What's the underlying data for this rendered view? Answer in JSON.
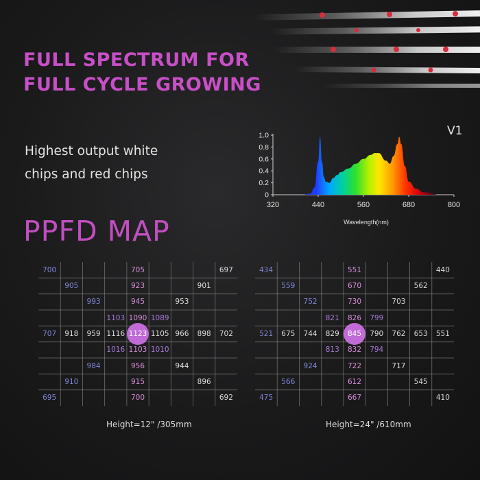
{
  "headline": {
    "line1": "FULL SPECTRUM FOR",
    "line2": "FULL CYCLE GROWING"
  },
  "subtext": {
    "line1": "Highest output white",
    "line2": "chips and red chips"
  },
  "ppfd_title": "PPFD MAP",
  "spectrum": {
    "version": "V1",
    "xlabel": "Wavelength(nm)",
    "x_ticks": [
      "320",
      "440",
      "560",
      "680",
      "800"
    ],
    "y_ticks": [
      "0",
      "0.2",
      "0.4",
      "0.6",
      "0.8",
      "1.0"
    ]
  },
  "chart_data": {
    "type": "area",
    "title": "V1",
    "xlabel": "Wavelength(nm)",
    "ylabel": "",
    "xlim": [
      320,
      800
    ],
    "ylim": [
      0,
      1.0
    ],
    "x": [
      400,
      420,
      430,
      440,
      445,
      450,
      455,
      460,
      470,
      480,
      490,
      500,
      520,
      540,
      560,
      580,
      590,
      600,
      620,
      630,
      640,
      650,
      655,
      660,
      670,
      680,
      700,
      720,
      760
    ],
    "series": [
      {
        "values": [
          0,
          0.02,
          0.12,
          0.55,
          0.97,
          0.55,
          0.3,
          0.22,
          0.2,
          0.28,
          0.33,
          0.38,
          0.44,
          0.52,
          0.6,
          0.67,
          0.7,
          0.7,
          0.57,
          0.52,
          0.65,
          0.85,
          0.97,
          0.85,
          0.48,
          0.22,
          0.1,
          0.04,
          0
        ]
      }
    ]
  },
  "maps": [
    {
      "height_label": "Height=12\" /305mm",
      "center_value": "1123",
      "cells": [
        {
          "v": "700",
          "r": 0,
          "c": 0,
          "t": "blue"
        },
        {
          "v": "705",
          "r": 0,
          "c": 4,
          "t": "pink"
        },
        {
          "v": "697",
          "r": 0,
          "c": 8,
          "t": "white"
        },
        {
          "v": "905",
          "r": 1,
          "c": 1,
          "t": "blue"
        },
        {
          "v": "923",
          "r": 1,
          "c": 4,
          "t": "pink"
        },
        {
          "v": "901",
          "r": 1,
          "c": 7,
          "t": "white"
        },
        {
          "v": "993",
          "r": 2,
          "c": 2,
          "t": "blue"
        },
        {
          "v": "945",
          "r": 2,
          "c": 4,
          "t": "pink"
        },
        {
          "v": "953",
          "r": 2,
          "c": 6,
          "t": "white"
        },
        {
          "v": "1103",
          "r": 3,
          "c": 3,
          "t": "purple"
        },
        {
          "v": "1090",
          "r": 3,
          "c": 4,
          "t": "pink"
        },
        {
          "v": "1089",
          "r": 3,
          "c": 5,
          "t": "purple"
        },
        {
          "v": "707",
          "r": 4,
          "c": 0,
          "t": "blue"
        },
        {
          "v": "918",
          "r": 4,
          "c": 1,
          "t": "white"
        },
        {
          "v": "959",
          "r": 4,
          "c": 2,
          "t": "white"
        },
        {
          "v": "1116",
          "r": 4,
          "c": 3,
          "t": "white"
        },
        {
          "v": "1105",
          "r": 4,
          "c": 5,
          "t": "white"
        },
        {
          "v": "966",
          "r": 4,
          "c": 6,
          "t": "white"
        },
        {
          "v": "898",
          "r": 4,
          "c": 7,
          "t": "white"
        },
        {
          "v": "702",
          "r": 4,
          "c": 8,
          "t": "white"
        },
        {
          "v": "1016",
          "r": 5,
          "c": 3,
          "t": "purple"
        },
        {
          "v": "1103",
          "r": 5,
          "c": 4,
          "t": "pink"
        },
        {
          "v": "1010",
          "r": 5,
          "c": 5,
          "t": "purple"
        },
        {
          "v": "984",
          "r": 6,
          "c": 2,
          "t": "blue"
        },
        {
          "v": "956",
          "r": 6,
          "c": 4,
          "t": "pink"
        },
        {
          "v": "944",
          "r": 6,
          "c": 6,
          "t": "white"
        },
        {
          "v": "910",
          "r": 7,
          "c": 1,
          "t": "blue"
        },
        {
          "v": "915",
          "r": 7,
          "c": 4,
          "t": "pink"
        },
        {
          "v": "896",
          "r": 7,
          "c": 7,
          "t": "white"
        },
        {
          "v": "695",
          "r": 8,
          "c": 0,
          "t": "blue"
        },
        {
          "v": "700",
          "r": 8,
          "c": 4,
          "t": "pink"
        },
        {
          "v": "692",
          "r": 8,
          "c": 8,
          "t": "white"
        }
      ]
    },
    {
      "height_label": "Height=24\" /610mm",
      "center_value": "845",
      "cells": [
        {
          "v": "434",
          "r": 0,
          "c": 0,
          "t": "blue"
        },
        {
          "v": "551",
          "r": 0,
          "c": 4,
          "t": "pink"
        },
        {
          "v": "440",
          "r": 0,
          "c": 8,
          "t": "white"
        },
        {
          "v": "559",
          "r": 1,
          "c": 1,
          "t": "blue"
        },
        {
          "v": "670",
          "r": 1,
          "c": 4,
          "t": "pink"
        },
        {
          "v": "562",
          "r": 1,
          "c": 7,
          "t": "white"
        },
        {
          "v": "752",
          "r": 2,
          "c": 2,
          "t": "blue"
        },
        {
          "v": "730",
          "r": 2,
          "c": 4,
          "t": "pink"
        },
        {
          "v": "703",
          "r": 2,
          "c": 6,
          "t": "white"
        },
        {
          "v": "821",
          "r": 3,
          "c": 3,
          "t": "purple"
        },
        {
          "v": "826",
          "r": 3,
          "c": 4,
          "t": "pink"
        },
        {
          "v": "799",
          "r": 3,
          "c": 5,
          "t": "purple"
        },
        {
          "v": "521",
          "r": 4,
          "c": 0,
          "t": "blue"
        },
        {
          "v": "675",
          "r": 4,
          "c": 1,
          "t": "white"
        },
        {
          "v": "744",
          "r": 4,
          "c": 2,
          "t": "white"
        },
        {
          "v": "829",
          "r": 4,
          "c": 3,
          "t": "white"
        },
        {
          "v": "790",
          "r": 4,
          "c": 5,
          "t": "white"
        },
        {
          "v": "762",
          "r": 4,
          "c": 6,
          "t": "white"
        },
        {
          "v": "653",
          "r": 4,
          "c": 7,
          "t": "white"
        },
        {
          "v": "551",
          "r": 4,
          "c": 8,
          "t": "white"
        },
        {
          "v": "813",
          "r": 5,
          "c": 3,
          "t": "purple"
        },
        {
          "v": "832",
          "r": 5,
          "c": 4,
          "t": "pink"
        },
        {
          "v": "794",
          "r": 5,
          "c": 5,
          "t": "purple"
        },
        {
          "v": "924",
          "r": 6,
          "c": 2,
          "t": "blue"
        },
        {
          "v": "722",
          "r": 6,
          "c": 4,
          "t": "pink"
        },
        {
          "v": "717",
          "r": 6,
          "c": 6,
          "t": "white"
        },
        {
          "v": "566",
          "r": 7,
          "c": 1,
          "t": "blue"
        },
        {
          "v": "612",
          "r": 7,
          "c": 4,
          "t": "pink"
        },
        {
          "v": "545",
          "r": 7,
          "c": 7,
          "t": "white"
        },
        {
          "v": "475",
          "r": 8,
          "c": 0,
          "t": "blue"
        },
        {
          "v": "667",
          "r": 8,
          "c": 4,
          "t": "pink"
        },
        {
          "v": "410",
          "r": 8,
          "c": 8,
          "t": "white"
        }
      ]
    }
  ],
  "colors": {
    "accent": "#c94fc7",
    "center_dot": "#c06bd6",
    "grid_line": "#8a8a8a"
  }
}
